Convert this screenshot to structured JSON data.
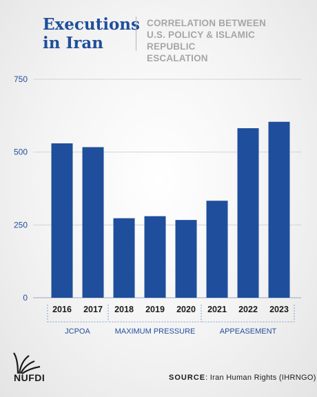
{
  "header": {
    "title_line1": "Executions",
    "title_line2": "in Iran",
    "subtitle_line1": "CORRELATION BETWEEN",
    "subtitle_line2": "U.S. POLICY & ISLAMIC REPUBLIC",
    "subtitle_line3": "ESCALATION"
  },
  "chart_data": {
    "type": "bar",
    "categories": [
      "2016",
      "2017",
      "2018",
      "2019",
      "2020",
      "2021",
      "2022",
      "2023"
    ],
    "values": [
      530,
      517,
      273,
      280,
      267,
      333,
      582,
      604
    ],
    "ylim": [
      0,
      750
    ],
    "yticks": [
      "0",
      "250",
      "500",
      "750"
    ],
    "grid": true,
    "bar_color": "#1f4e9c",
    "groups": [
      {
        "label": "JCPOA",
        "start": 0,
        "end": 1
      },
      {
        "label": "MAXIMUM PRESSURE",
        "start": 2,
        "end": 4
      },
      {
        "label": "APPEASEMENT",
        "start": 5,
        "end": 7
      }
    ]
  },
  "footer": {
    "source_label": "SOURCE",
    "source_text": ": Iran Human Rights (IHRNGO)",
    "logo_text": "NUFDI"
  },
  "colors": {
    "title": "#1f4e9c",
    "subtitle": "#a6a6a6",
    "axis_text": "#1f4e9c",
    "group_line": "#7f9ccc"
  }
}
